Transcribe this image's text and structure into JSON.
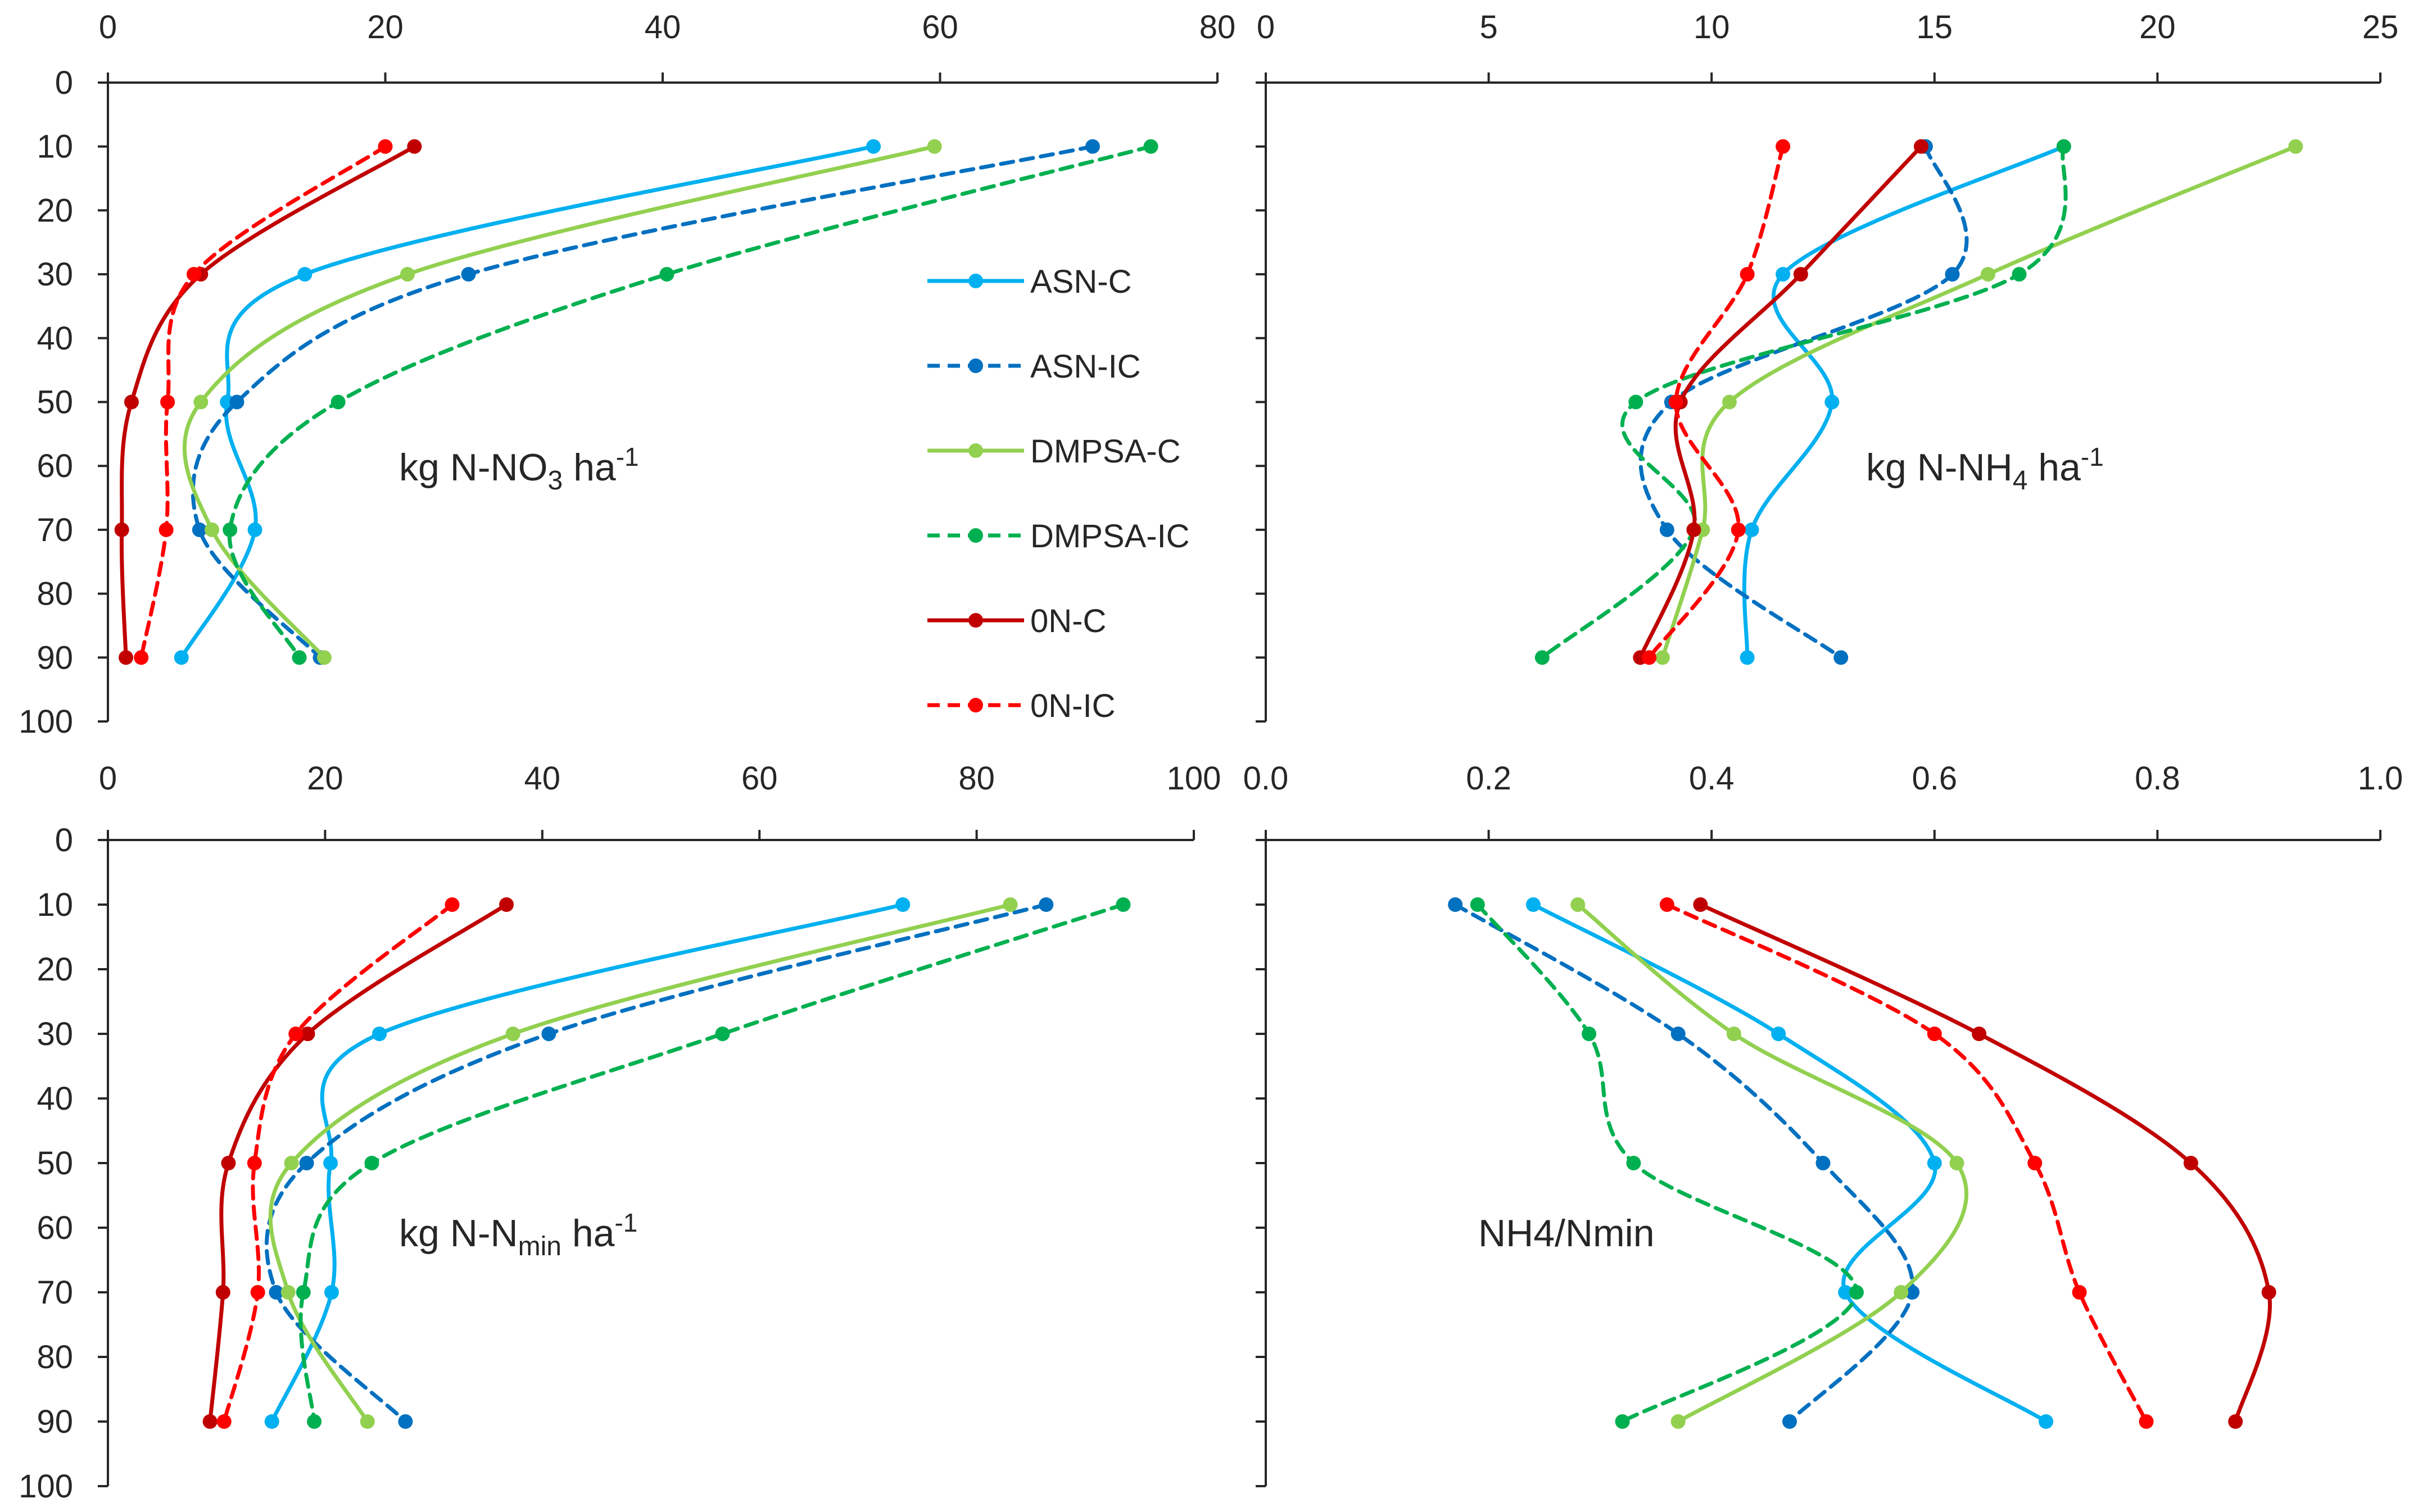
{
  "legend": {
    "items": [
      {
        "series": "ASN-C"
      },
      {
        "series": "ASN-IC"
      },
      {
        "series": "DMPSA-C"
      },
      {
        "series": "DMPSA-IC"
      },
      {
        "series": "0N-C"
      },
      {
        "series": "0N-IC"
      }
    ]
  },
  "series_styles": [
    {
      "name": "ASN-C",
      "color": "#00B0F0",
      "dashed": false
    },
    {
      "name": "ASN-IC",
      "color": "#0070C0",
      "dashed": true
    },
    {
      "name": "DMPSA-C",
      "color": "#92D050",
      "dashed": false
    },
    {
      "name": "DMPSA-IC",
      "color": "#00B050",
      "dashed": true
    },
    {
      "name": "0N-C",
      "color": "#C00000",
      "dashed": false
    },
    {
      "name": "0N-IC",
      "color": "#FF0000",
      "dashed": true
    }
  ],
  "chart_data": [
    {
      "type": "line",
      "title": "",
      "panel_label": {
        "base": "kg N-NO",
        "sub": "3",
        "mid": " ha",
        "sup": "-1"
      },
      "xlabel": "",
      "ylabel": "",
      "xlim": [
        0,
        80
      ],
      "xticks": [
        0,
        20,
        40,
        60,
        80
      ],
      "xtick_labels": [
        "0",
        "20",
        "40",
        "60",
        "80"
      ],
      "ylim": [
        0,
        100
      ],
      "yticks": [
        0,
        10,
        20,
        30,
        40,
        50,
        60,
        70,
        80,
        90,
        100
      ],
      "ytick_labels": [
        "0",
        "10",
        "20",
        "30",
        "40",
        "50",
        "60",
        "70",
        "80",
        "90",
        "100"
      ],
      "depth": [
        10,
        30,
        50,
        70,
        90
      ],
      "series": [
        {
          "name": "ASN-C",
          "values": [
            55.2,
            14.2,
            8.6,
            10.6,
            5.3
          ]
        },
        {
          "name": "ASN-IC",
          "values": [
            71.0,
            26.0,
            9.3,
            6.6,
            15.3
          ]
        },
        {
          "name": "DMPSA-C",
          "values": [
            59.6,
            21.6,
            6.7,
            7.5,
            15.6
          ]
        },
        {
          "name": "DMPSA-IC",
          "values": [
            75.2,
            40.3,
            16.6,
            8.8,
            13.8
          ]
        },
        {
          "name": "0N-C",
          "values": [
            22.1,
            6.7,
            1.7,
            1.0,
            1.3
          ]
        },
        {
          "name": "0N-IC",
          "values": [
            20.0,
            6.2,
            4.3,
            4.2,
            2.4
          ]
        }
      ],
      "legend_position": "center-right"
    },
    {
      "type": "line",
      "title": "",
      "panel_label": {
        "base": "kg N-NH",
        "sub": "4",
        "mid": " ha",
        "sup": "-1"
      },
      "xlabel": "",
      "ylabel": "",
      "xlim": [
        0,
        25
      ],
      "xticks": [
        0,
        5,
        10,
        15,
        20,
        25
      ],
      "xtick_labels": [
        "0",
        "5",
        "10",
        "15",
        "20",
        "25"
      ],
      "ylim": [
        0,
        100
      ],
      "yticks": [
        0,
        10,
        20,
        30,
        40,
        50,
        60,
        70,
        80,
        90,
        100
      ],
      "ytick_labels": [],
      "depth": [
        10,
        30,
        50,
        70,
        90
      ],
      "series": [
        {
          "name": "ASN-C",
          "values": [
            17.9,
            11.6,
            12.7,
            10.9,
            10.8
          ]
        },
        {
          "name": "ASN-IC",
          "values": [
            14.8,
            15.4,
            9.1,
            9.0,
            12.9
          ]
        },
        {
          "name": "DMPSA-C",
          "values": [
            23.1,
            16.2,
            10.4,
            9.8,
            8.9
          ]
        },
        {
          "name": "DMPSA-IC",
          "values": [
            17.9,
            16.9,
            8.3,
            9.6,
            6.2
          ]
        },
        {
          "name": "0N-C",
          "values": [
            14.7,
            12.0,
            9.3,
            9.6,
            8.4
          ]
        },
        {
          "name": "0N-IC",
          "values": [
            11.6,
            10.8,
            9.2,
            10.6,
            8.6
          ]
        }
      ]
    },
    {
      "type": "line",
      "title": "",
      "panel_label": {
        "base": "kg N-N",
        "sub": "min",
        "mid": " ha",
        "sup": "-1"
      },
      "xlabel": "",
      "ylabel": "",
      "xlim": [
        0,
        100
      ],
      "xticks": [
        0,
        20,
        40,
        60,
        80,
        100
      ],
      "xtick_labels": [
        "0",
        "20",
        "40",
        "60",
        "80",
        "100"
      ],
      "ylim": [
        0,
        100
      ],
      "yticks": [
        0,
        10,
        20,
        30,
        40,
        50,
        60,
        70,
        80,
        90,
        100
      ],
      "ytick_labels": [
        "0",
        "10",
        "20",
        "30",
        "40",
        "50",
        "60",
        "70",
        "80",
        "90",
        "100"
      ],
      "depth": [
        10,
        30,
        50,
        70,
        90
      ],
      "series": [
        {
          "name": "ASN-C",
          "values": [
            73.2,
            25.0,
            20.5,
            20.6,
            15.1
          ]
        },
        {
          "name": "ASN-IC",
          "values": [
            86.4,
            40.6,
            18.3,
            15.5,
            27.4
          ]
        },
        {
          "name": "DMPSA-C",
          "values": [
            83.1,
            37.3,
            16.9,
            16.6,
            23.9
          ]
        },
        {
          "name": "DMPSA-IC",
          "values": [
            93.5,
            56.6,
            24.3,
            18.0,
            19.0
          ]
        },
        {
          "name": "0N-C",
          "values": [
            36.7,
            18.4,
            11.1,
            10.6,
            9.4
          ]
        },
        {
          "name": "0N-IC",
          "values": [
            31.7,
            17.3,
            13.5,
            13.8,
            10.7
          ]
        }
      ]
    },
    {
      "type": "line",
      "title": "",
      "panel_label": {
        "base": "NH4/Nmin",
        "sub": "",
        "mid": "",
        "sup": ""
      },
      "xlabel": "",
      "ylabel": "",
      "xlim": [
        0,
        1
      ],
      "xticks": [
        0,
        0.2,
        0.4,
        0.6,
        0.8,
        1.0
      ],
      "xtick_labels": [
        "0.0",
        "0.2",
        "0.4",
        "0.6",
        "0.8",
        "1.0"
      ],
      "ylim": [
        0,
        100
      ],
      "yticks": [
        0,
        10,
        20,
        30,
        40,
        50,
        60,
        70,
        80,
        90,
        100
      ],
      "ytick_labels": [],
      "depth": [
        10,
        30,
        50,
        70,
        90
      ],
      "series": [
        {
          "name": "ASN-C",
          "values": [
            0.24,
            0.46,
            0.6,
            0.52,
            0.7
          ]
        },
        {
          "name": "ASN-IC",
          "values": [
            0.17,
            0.37,
            0.5,
            0.58,
            0.47
          ]
        },
        {
          "name": "DMPSA-C",
          "values": [
            0.28,
            0.42,
            0.62,
            0.57,
            0.37
          ]
        },
        {
          "name": "DMPSA-IC",
          "values": [
            0.19,
            0.29,
            0.33,
            0.53,
            0.32
          ]
        },
        {
          "name": "0N-C",
          "values": [
            0.39,
            0.64,
            0.83,
            0.9,
            0.87
          ]
        },
        {
          "name": "0N-IC",
          "values": [
            0.36,
            0.6,
            0.69,
            0.73,
            0.79
          ]
        }
      ]
    }
  ]
}
